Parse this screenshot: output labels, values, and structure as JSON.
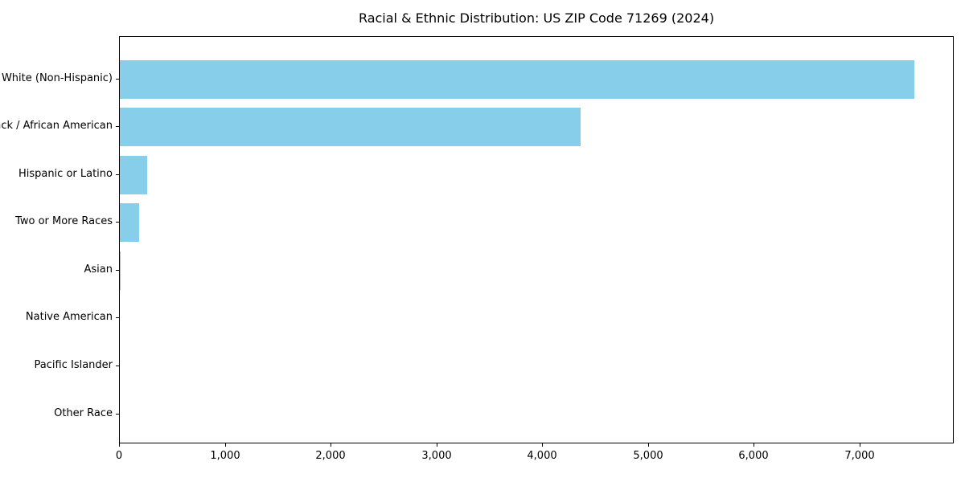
{
  "title": "Racial & Ethnic Distribution: US ZIP Code 71269 (2024)",
  "chart_data": {
    "type": "bar",
    "orientation": "horizontal",
    "title": "Racial & Ethnic Distribution: US ZIP Code 71269 (2024)",
    "xlabel": "",
    "ylabel": "",
    "categories": [
      "White (Non-Hispanic)",
      "Black / African American",
      "Hispanic or Latino",
      "Two or More Races",
      "Asian",
      "Native American",
      "Pacific Islander",
      "Other Race"
    ],
    "values": [
      7512,
      4353,
      261,
      185,
      8,
      0,
      0,
      0
    ],
    "xlim": [
      0,
      7890
    ],
    "x_ticks": [
      0,
      1000,
      2000,
      3000,
      4000,
      5000,
      6000,
      7000
    ],
    "x_tick_labels": [
      "0",
      "1,000",
      "2,000",
      "3,000",
      "4,000",
      "5,000",
      "6,000",
      "7,000"
    ],
    "bar_color": "#87CEEB",
    "grid": false,
    "legend": false
  }
}
